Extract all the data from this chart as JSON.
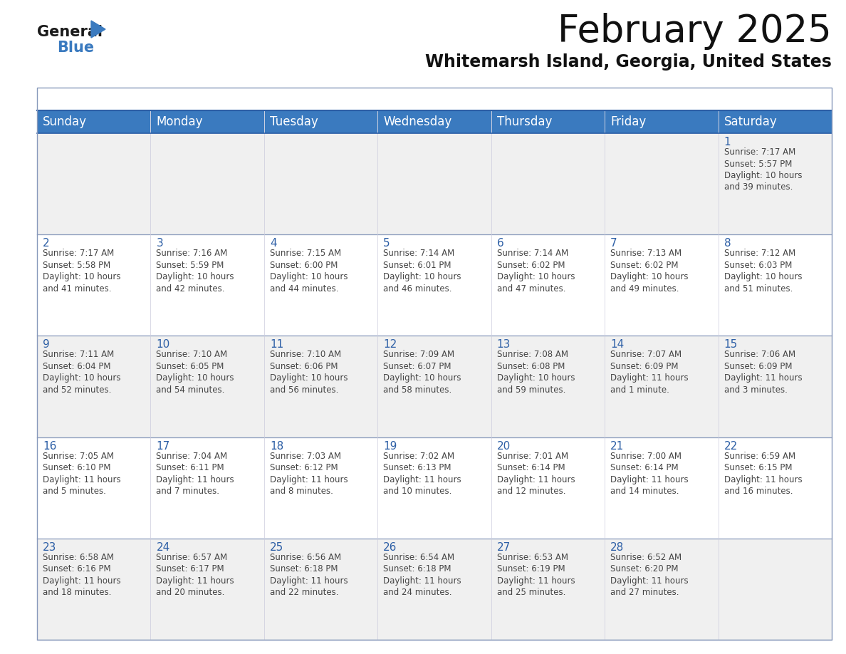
{
  "title": "February 2025",
  "subtitle": "Whitemarsh Island, Georgia, United States",
  "header_color": "#3a7abf",
  "header_text_color": "#ffffff",
  "cell_bg_white": "#ffffff",
  "cell_bg_gray": "#f0f0f0",
  "day_number_color": "#2d5fa6",
  "text_color": "#444444",
  "border_color_dark": "#2d5fa6",
  "border_color_light": "#8899bb",
  "days_of_week": [
    "Sunday",
    "Monday",
    "Tuesday",
    "Wednesday",
    "Thursday",
    "Friday",
    "Saturday"
  ],
  "calendar_data": [
    [
      {
        "day": "",
        "info": ""
      },
      {
        "day": "",
        "info": ""
      },
      {
        "day": "",
        "info": ""
      },
      {
        "day": "",
        "info": ""
      },
      {
        "day": "",
        "info": ""
      },
      {
        "day": "",
        "info": ""
      },
      {
        "day": "1",
        "info": "Sunrise: 7:17 AM\nSunset: 5:57 PM\nDaylight: 10 hours\nand 39 minutes."
      }
    ],
    [
      {
        "day": "2",
        "info": "Sunrise: 7:17 AM\nSunset: 5:58 PM\nDaylight: 10 hours\nand 41 minutes."
      },
      {
        "day": "3",
        "info": "Sunrise: 7:16 AM\nSunset: 5:59 PM\nDaylight: 10 hours\nand 42 minutes."
      },
      {
        "day": "4",
        "info": "Sunrise: 7:15 AM\nSunset: 6:00 PM\nDaylight: 10 hours\nand 44 minutes."
      },
      {
        "day": "5",
        "info": "Sunrise: 7:14 AM\nSunset: 6:01 PM\nDaylight: 10 hours\nand 46 minutes."
      },
      {
        "day": "6",
        "info": "Sunrise: 7:14 AM\nSunset: 6:02 PM\nDaylight: 10 hours\nand 47 minutes."
      },
      {
        "day": "7",
        "info": "Sunrise: 7:13 AM\nSunset: 6:02 PM\nDaylight: 10 hours\nand 49 minutes."
      },
      {
        "day": "8",
        "info": "Sunrise: 7:12 AM\nSunset: 6:03 PM\nDaylight: 10 hours\nand 51 minutes."
      }
    ],
    [
      {
        "day": "9",
        "info": "Sunrise: 7:11 AM\nSunset: 6:04 PM\nDaylight: 10 hours\nand 52 minutes."
      },
      {
        "day": "10",
        "info": "Sunrise: 7:10 AM\nSunset: 6:05 PM\nDaylight: 10 hours\nand 54 minutes."
      },
      {
        "day": "11",
        "info": "Sunrise: 7:10 AM\nSunset: 6:06 PM\nDaylight: 10 hours\nand 56 minutes."
      },
      {
        "day": "12",
        "info": "Sunrise: 7:09 AM\nSunset: 6:07 PM\nDaylight: 10 hours\nand 58 minutes."
      },
      {
        "day": "13",
        "info": "Sunrise: 7:08 AM\nSunset: 6:08 PM\nDaylight: 10 hours\nand 59 minutes."
      },
      {
        "day": "14",
        "info": "Sunrise: 7:07 AM\nSunset: 6:09 PM\nDaylight: 11 hours\nand 1 minute."
      },
      {
        "day": "15",
        "info": "Sunrise: 7:06 AM\nSunset: 6:09 PM\nDaylight: 11 hours\nand 3 minutes."
      }
    ],
    [
      {
        "day": "16",
        "info": "Sunrise: 7:05 AM\nSunset: 6:10 PM\nDaylight: 11 hours\nand 5 minutes."
      },
      {
        "day": "17",
        "info": "Sunrise: 7:04 AM\nSunset: 6:11 PM\nDaylight: 11 hours\nand 7 minutes."
      },
      {
        "day": "18",
        "info": "Sunrise: 7:03 AM\nSunset: 6:12 PM\nDaylight: 11 hours\nand 8 minutes."
      },
      {
        "day": "19",
        "info": "Sunrise: 7:02 AM\nSunset: 6:13 PM\nDaylight: 11 hours\nand 10 minutes."
      },
      {
        "day": "20",
        "info": "Sunrise: 7:01 AM\nSunset: 6:14 PM\nDaylight: 11 hours\nand 12 minutes."
      },
      {
        "day": "21",
        "info": "Sunrise: 7:00 AM\nSunset: 6:14 PM\nDaylight: 11 hours\nand 14 minutes."
      },
      {
        "day": "22",
        "info": "Sunrise: 6:59 AM\nSunset: 6:15 PM\nDaylight: 11 hours\nand 16 minutes."
      }
    ],
    [
      {
        "day": "23",
        "info": "Sunrise: 6:58 AM\nSunset: 6:16 PM\nDaylight: 11 hours\nand 18 minutes."
      },
      {
        "day": "24",
        "info": "Sunrise: 6:57 AM\nSunset: 6:17 PM\nDaylight: 11 hours\nand 20 minutes."
      },
      {
        "day": "25",
        "info": "Sunrise: 6:56 AM\nSunset: 6:18 PM\nDaylight: 11 hours\nand 22 minutes."
      },
      {
        "day": "26",
        "info": "Sunrise: 6:54 AM\nSunset: 6:18 PM\nDaylight: 11 hours\nand 24 minutes."
      },
      {
        "day": "27",
        "info": "Sunrise: 6:53 AM\nSunset: 6:19 PM\nDaylight: 11 hours\nand 25 minutes."
      },
      {
        "day": "28",
        "info": "Sunrise: 6:52 AM\nSunset: 6:20 PM\nDaylight: 11 hours\nand 27 minutes."
      },
      {
        "day": "",
        "info": ""
      }
    ]
  ],
  "logo_general_color": "#1a1a1a",
  "logo_blue_color": "#3a7abf",
  "logo_triangle_color": "#3a7abf",
  "title_fontsize": 38,
  "subtitle_fontsize": 17,
  "header_fontsize": 12,
  "day_num_fontsize": 11,
  "info_fontsize": 8.5
}
